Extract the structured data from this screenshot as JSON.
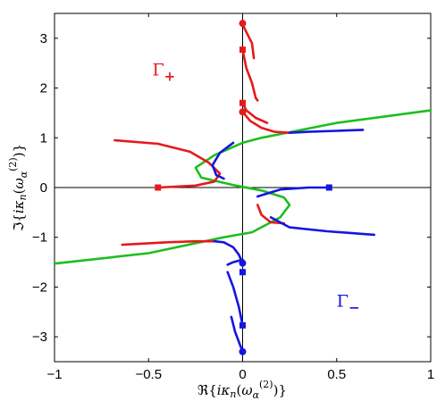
{
  "chart_data": {
    "type": "line",
    "xlabel": "ℜ{iκn(ω(2)α)}",
    "ylabel": "ℑ{iκn(ω(2)α)}",
    "xlim": [
      -1,
      1
    ],
    "ylim": [
      -3.5,
      3.5
    ],
    "xticks": [
      -1,
      -0.5,
      0,
      0.5,
      1
    ],
    "yticks": [
      -3,
      -2,
      -1,
      0,
      1,
      2,
      3
    ],
    "xtick_labels": [
      "−1",
      "−0.5",
      "0",
      "0.5",
      "1"
    ],
    "ytick_labels": [
      "−3",
      "−2",
      "−1",
      "0",
      "1",
      "2",
      "3"
    ],
    "grid": false,
    "annotations": [
      {
        "text": "Γ",
        "sub": "+",
        "x": -0.48,
        "y": 2.25,
        "color": "#e41a1c"
      },
      {
        "text": "Γ",
        "sub": "−",
        "x": 0.5,
        "y": -2.4,
        "color": "#1515e0"
      }
    ],
    "zero_lines": {
      "color": "#000000"
    },
    "series": [
      {
        "color": "#1ebe1e",
        "points": [
          [
            -1.0,
            -1.53
          ],
          [
            -0.5,
            -1.32
          ],
          [
            -0.1,
            -1.0
          ],
          [
            0.05,
            -0.9
          ],
          [
            0.2,
            -0.6
          ],
          [
            0.25,
            -0.35
          ],
          [
            0.22,
            -0.2
          ],
          [
            0.1,
            -0.06
          ],
          [
            -0.05,
            0.05
          ],
          [
            -0.22,
            0.2
          ],
          [
            -0.25,
            0.4
          ],
          [
            -0.15,
            0.65
          ],
          [
            0.0,
            0.9
          ],
          [
            0.1,
            1.0
          ],
          [
            0.5,
            1.3
          ],
          [
            1.0,
            1.55
          ]
        ]
      },
      {
        "color": "#e41a1c",
        "points": [
          [
            -0.68,
            0.95
          ],
          [
            -0.45,
            0.88
          ],
          [
            -0.28,
            0.72
          ],
          [
            -0.18,
            0.5
          ],
          [
            -0.12,
            0.28
          ],
          [
            -0.15,
            0.12
          ],
          [
            -0.25,
            0.04
          ],
          [
            -0.45,
            0.0
          ]
        ]
      },
      {
        "color": "#e41a1c",
        "points": [
          [
            -0.64,
            -1.15
          ],
          [
            -0.4,
            -1.1
          ],
          [
            -0.25,
            -1.08
          ],
          [
            -0.15,
            -1.08
          ]
        ]
      },
      {
        "color": "#e41a1c",
        "points": [
          [
            0.0,
            1.52
          ],
          [
            0.04,
            1.34
          ],
          [
            0.1,
            1.2
          ],
          [
            0.17,
            1.12
          ],
          [
            0.25,
            1.1
          ]
        ]
      },
      {
        "color": "#e41a1c",
        "points": [
          [
            0.0,
            3.3
          ],
          [
            0.01,
            3.2
          ],
          [
            0.05,
            2.9
          ],
          [
            0.06,
            2.6
          ]
        ]
      },
      {
        "color": "#e41a1c",
        "points": [
          [
            0.0,
            2.77
          ],
          [
            0.02,
            2.4
          ],
          [
            0.05,
            2.1
          ],
          [
            0.07,
            1.8
          ],
          [
            0.08,
            1.75
          ]
        ]
      },
      {
        "color": "#e41a1c",
        "points": [
          [
            0.0,
            1.7
          ],
          [
            0.02,
            1.55
          ],
          [
            0.07,
            1.4
          ],
          [
            0.13,
            1.3
          ]
        ]
      },
      {
        "color": "#e41a1c",
        "points": [
          [
            0.08,
            -0.35
          ],
          [
            0.1,
            -0.55
          ],
          [
            0.15,
            -0.7
          ],
          [
            0.22,
            -0.72
          ]
        ]
      },
      {
        "color": "#1515e0",
        "points": [
          [
            0.25,
            1.1
          ],
          [
            0.35,
            1.12
          ],
          [
            0.5,
            1.14
          ],
          [
            0.64,
            1.16
          ]
        ]
      },
      {
        "color": "#1515e0",
        "points": [
          [
            -0.05,
            0.9
          ],
          [
            -0.12,
            0.7
          ],
          [
            -0.16,
            0.45
          ],
          [
            -0.14,
            0.25
          ],
          [
            -0.1,
            0.18
          ]
        ]
      },
      {
        "color": "#1515e0",
        "points": [
          [
            0.08,
            -0.18
          ],
          [
            0.2,
            -0.04
          ],
          [
            0.35,
            0.0
          ],
          [
            0.46,
            0.0
          ]
        ]
      },
      {
        "color": "#1515e0",
        "points": [
          [
            0.15,
            -0.6
          ],
          [
            0.25,
            -0.8
          ],
          [
            0.45,
            -0.88
          ],
          [
            0.7,
            -0.95
          ]
        ]
      },
      {
        "color": "#1515e0",
        "points": [
          [
            -0.15,
            -1.08
          ],
          [
            -0.1,
            -1.1
          ],
          [
            -0.05,
            -1.2
          ],
          [
            -0.02,
            -1.35
          ],
          [
            0.0,
            -1.52
          ]
        ]
      },
      {
        "color": "#1515e0",
        "points": [
          [
            -0.08,
            -1.7
          ],
          [
            -0.05,
            -2.0
          ],
          [
            -0.02,
            -2.4
          ],
          [
            0.0,
            -2.77
          ]
        ]
      },
      {
        "color": "#1515e0",
        "points": [
          [
            -0.06,
            -2.6
          ],
          [
            -0.04,
            -2.9
          ],
          [
            -0.01,
            -3.2
          ],
          [
            0.0,
            -3.3
          ]
        ]
      },
      {
        "color": "#1515e0",
        "points": [
          [
            0.0,
            -1.45
          ],
          [
            -0.05,
            -1.5
          ],
          [
            -0.08,
            -1.55
          ]
        ]
      }
    ],
    "markers": [
      {
        "shape": "circle",
        "color": "#e41a1c",
        "x": 0.0,
        "y": 3.3
      },
      {
        "shape": "square",
        "color": "#e41a1c",
        "x": 0.0,
        "y": 2.77
      },
      {
        "shape": "square",
        "color": "#e41a1c",
        "x": 0.0,
        "y": 1.7
      },
      {
        "shape": "circle",
        "color": "#e41a1c",
        "x": 0.0,
        "y": 1.52
      },
      {
        "shape": "square",
        "color": "#e41a1c",
        "x": -0.45,
        "y": 0.0
      },
      {
        "shape": "square",
        "color": "#1515e0",
        "x": 0.46,
        "y": 0.0
      },
      {
        "shape": "circle",
        "color": "#1515e0",
        "x": 0.0,
        "y": -1.52
      },
      {
        "shape": "square",
        "color": "#1515e0",
        "x": 0.0,
        "y": -1.7
      },
      {
        "shape": "square",
        "color": "#1515e0",
        "x": 0.0,
        "y": -2.77
      },
      {
        "shape": "circle",
        "color": "#1515e0",
        "x": 0.0,
        "y": -3.3
      }
    ]
  }
}
